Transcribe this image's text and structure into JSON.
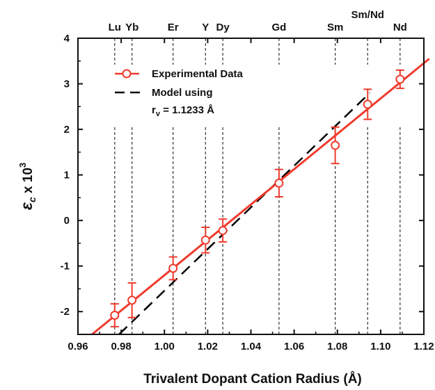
{
  "chart_data": {
    "type": "scatter",
    "xlabel": "Trivalent Dopant Cation Radius (Å)",
    "ylabel_main": "ε",
    "ylabel_sub": "c",
    "ylabel_rest": " x 10",
    "ylabel_sup": "3",
    "xlim": [
      0.96,
      1.12
    ],
    "ylim": [
      -2.5,
      4
    ],
    "x_ticks": [
      "0.96",
      "0.98",
      "1.00",
      "1.02",
      "1.04",
      "1.06",
      "1.08",
      "1.10",
      "1.12"
    ],
    "y_ticks": [
      "-2",
      "-1",
      "0",
      "1",
      "2",
      "3",
      "4"
    ],
    "grid": false,
    "legend": {
      "position": "top-left",
      "experimental_label": "Experimental Data",
      "model_label_line1": "Model using",
      "model_label_line2_main": "r",
      "model_label_line2_sub": "v",
      "model_label_line2_rest": " = 1.1233 Å"
    },
    "dopants": [
      {
        "label": "Lu",
        "x": 0.977
      },
      {
        "label": "Yb",
        "x": 0.985
      },
      {
        "label": "Er",
        "x": 1.004
      },
      {
        "label": "Y",
        "x": 1.019
      },
      {
        "label": "Dy",
        "x": 1.027
      },
      {
        "label": "Gd",
        "x": 1.053
      },
      {
        "label": "Sm",
        "x": 1.079
      },
      {
        "label": "Sm/Nd",
        "x": 1.094
      },
      {
        "label": "Nd",
        "x": 1.109
      }
    ],
    "series": [
      {
        "name": "Experimental Data",
        "kind": "scatter-errorbar",
        "color": "#ef3b2c",
        "points": [
          {
            "x": 0.977,
            "y": -2.08,
            "err": 0.25
          },
          {
            "x": 0.985,
            "y": -1.75,
            "err": 0.38
          },
          {
            "x": 1.004,
            "y": -1.05,
            "err": 0.25
          },
          {
            "x": 1.019,
            "y": -0.43,
            "err": 0.28
          },
          {
            "x": 1.027,
            "y": -0.22,
            "err": 0.25
          },
          {
            "x": 1.053,
            "y": 0.82,
            "err": 0.3
          },
          {
            "x": 1.079,
            "y": 1.65,
            "err": 0.4
          },
          {
            "x": 1.094,
            "y": 2.55,
            "err": 0.33
          },
          {
            "x": 1.109,
            "y": 3.1,
            "err": 0.2
          }
        ]
      },
      {
        "name": "Experimental fit",
        "kind": "line",
        "color": "#ef3b2c",
        "x": [
          0.9665,
          1.1225
        ],
        "y": [
          -2.5,
          3.55
        ]
      },
      {
        "name": "Model using r_v = 1.1233 Å",
        "kind": "dashed-line",
        "color": "#000000",
        "x": [
          0.979,
          1.095
        ],
        "y": [
          -2.5,
          2.8
        ]
      }
    ]
  }
}
